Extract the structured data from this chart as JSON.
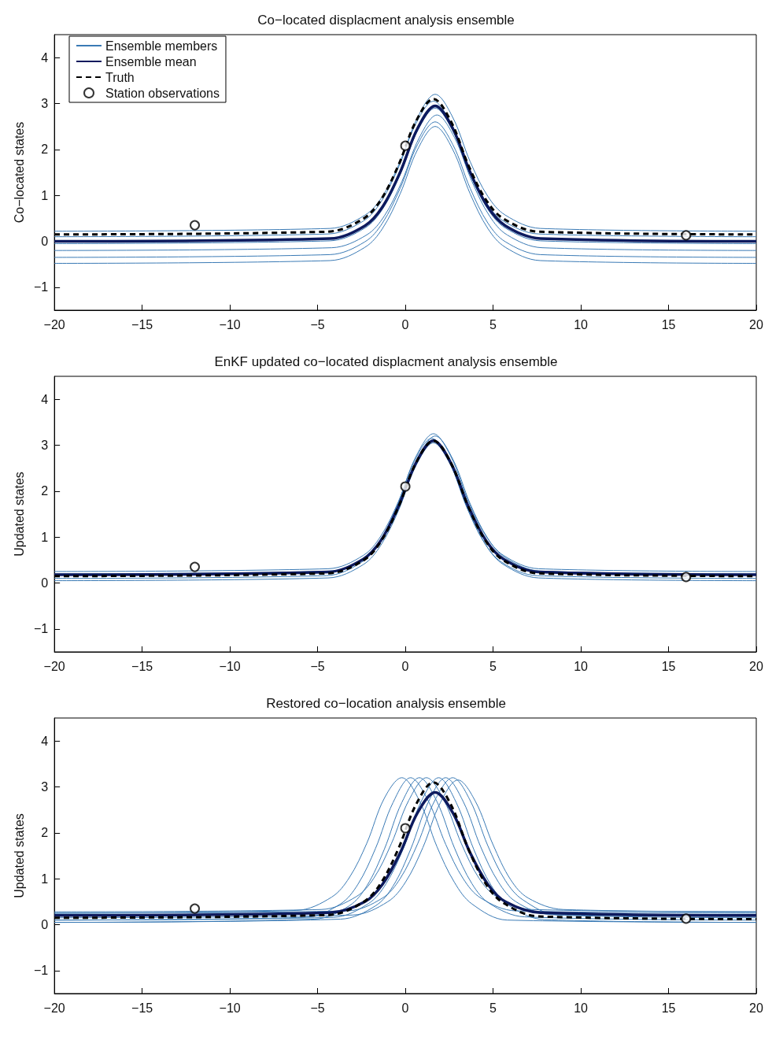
{
  "chart_data": [
    {
      "type": "line",
      "title": "Co−located displacment analysis ensemble",
      "ylabel": "Co−located states",
      "xlim": [
        -20,
        20
      ],
      "xticks": [
        -20,
        -15,
        -10,
        -5,
        0,
        5,
        10,
        15,
        20
      ],
      "ylim": [
        -1.5,
        4.5
      ],
      "yticks": [
        -1,
        0,
        1,
        2,
        3,
        4
      ],
      "grid": false,
      "legend": "top left",
      "marker": "none",
      "series": [
        {
          "name": "Ensemble members",
          "color": "#3a7ab5",
          "x": [
            -20,
            -4.3,
            -2.3,
            -1.3,
            -0.3,
            0.7,
            1.7,
            2.7,
            3.7,
            4.7,
            5.7,
            7.7,
            20
          ],
          "values": [
            0.22,
            0.28,
            0.57,
            0.98,
            1.73,
            2.7,
            3.2,
            2.7,
            1.73,
            0.98,
            0.57,
            0.28,
            0.22
          ]
        },
        {
          "color": "#3a7ab5",
          "x": [
            -20,
            -4.4,
            -2.4,
            -1.4,
            -0.4,
            0.6,
            1.6,
            2.6,
            3.6,
            4.6,
            5.6,
            7.6,
            20
          ],
          "values": [
            0.1,
            0.16,
            0.44,
            0.85,
            1.6,
            2.56,
            3.05,
            2.56,
            1.6,
            0.85,
            0.44,
            0.16,
            0.1
          ]
        },
        {
          "color": "#3a7ab5",
          "x": [
            -20,
            -4.3,
            -2.3,
            -1.3,
            -0.3,
            0.7,
            1.7,
            2.7,
            3.7,
            4.7,
            5.7,
            7.7,
            20
          ],
          "values": [
            -0.05,
            0.01,
            0.29,
            0.7,
            1.45,
            2.41,
            2.9,
            2.41,
            1.45,
            0.7,
            0.29,
            0.01,
            -0.05
          ]
        },
        {
          "color": "#3a7ab5",
          "x": [
            -20,
            -4.2,
            -2.2,
            -1.2,
            -0.2,
            0.8,
            1.8,
            2.8,
            3.8,
            4.8,
            5.8,
            7.8,
            20
          ],
          "values": [
            -0.2,
            -0.14,
            0.14,
            0.55,
            1.3,
            2.26,
            2.75,
            2.26,
            1.3,
            0.55,
            0.14,
            -0.14,
            -0.2
          ]
        },
        {
          "color": "#3a7ab5",
          "x": [
            -20,
            -4.3,
            -2.3,
            -1.3,
            -0.3,
            0.7,
            1.7,
            2.7,
            3.7,
            4.7,
            5.7,
            7.7,
            20
          ],
          "values": [
            -0.35,
            -0.29,
            -0.01,
            0.4,
            1.15,
            2.11,
            2.6,
            2.11,
            1.15,
            0.4,
            -0.01,
            -0.29,
            -0.35
          ]
        },
        {
          "color": "#3a7ab5",
          "x": [
            -20,
            -4.3,
            -2.3,
            -1.3,
            -0.3,
            0.7,
            1.7,
            2.7,
            3.7,
            4.7,
            5.7,
            7.7,
            20
          ],
          "values": [
            -0.48,
            -0.42,
            -0.13,
            0.28,
            1.03,
            2.0,
            2.5,
            2.0,
            1.03,
            0.28,
            -0.13,
            -0.42,
            -0.48
          ]
        },
        {
          "name": "Ensemble mean",
          "color": "#0d1a5e",
          "x": [
            -20,
            -4.3,
            -2.3,
            -1.3,
            -0.3,
            0.7,
            1.7,
            2.7,
            3.7,
            4.7,
            5.7,
            7.7,
            20
          ],
          "values": [
            0,
            0.06,
            0.34,
            0.75,
            1.5,
            2.46,
            2.95,
            2.46,
            1.5,
            0.75,
            0.34,
            0.06,
            0
          ]
        },
        {
          "name": "Truth",
          "color": "#000000",
          "line_style": "dashed",
          "x": [
            -20,
            -4.4,
            -2.4,
            -1.4,
            -0.4,
            0.6,
            1.6,
            2.6,
            3.6,
            4.6,
            5.6,
            7.6,
            20
          ],
          "values": [
            0.15,
            0.21,
            0.49,
            0.9,
            1.65,
            2.61,
            3.1,
            2.61,
            1.65,
            0.9,
            0.49,
            0.21,
            0.15
          ]
        },
        {
          "name": "Station observations",
          "type": "scatter",
          "marker": "circle",
          "color": "#000000",
          "x": [
            -12,
            0,
            16
          ],
          "values": [
            0.35,
            2.08,
            0.13
          ]
        }
      ]
    },
    {
      "type": "line",
      "title": "EnKF updated co−located displacment analysis ensemble",
      "ylabel": "Updated states",
      "xlim": [
        -20,
        20
      ],
      "xticks": [
        -20,
        -15,
        -10,
        -5,
        0,
        5,
        10,
        15,
        20
      ],
      "ylim": [
        -1.5,
        4.5
      ],
      "yticks": [
        -1,
        0,
        1,
        2,
        3,
        4
      ],
      "grid": false,
      "legend": false,
      "marker": "none",
      "series": [
        {
          "color": "#3a7ab5",
          "x": [
            -20,
            -4.4,
            -2.4,
            -1.4,
            -0.4,
            0.6,
            1.6,
            2.6,
            3.6,
            4.6,
            5.6,
            7.6,
            20
          ],
          "values": [
            0.25,
            0.31,
            0.6,
            1.02,
            1.77,
            2.75,
            3.25,
            2.75,
            1.77,
            1.02,
            0.6,
            0.31,
            0.25
          ]
        },
        {
          "color": "#3a7ab5",
          "x": [
            -20,
            -4.5,
            -2.5,
            -1.5,
            -0.5,
            0.5,
            1.5,
            2.5,
            3.5,
            4.5,
            5.5,
            7.5,
            20
          ],
          "values": [
            0.1,
            0.16,
            0.45,
            0.88,
            1.65,
            2.64,
            3.15,
            2.64,
            1.65,
            0.88,
            0.45,
            0.16,
            0.1
          ]
        },
        {
          "color": "#3a7ab5",
          "x": [
            -20,
            -4.4,
            -2.4,
            -1.4,
            -0.4,
            0.6,
            1.6,
            2.6,
            3.6,
            4.6,
            5.6,
            7.6,
            20
          ],
          "values": [
            0.05,
            0.11,
            0.4,
            0.82,
            1.57,
            2.55,
            3.05,
            2.55,
            1.57,
            0.82,
            0.4,
            0.11,
            0.05
          ]
        },
        {
          "color": "#3a7ab5",
          "x": [
            -20,
            -4.3,
            -2.3,
            -1.3,
            -0.3,
            0.7,
            1.7,
            2.7,
            3.7,
            4.7,
            5.7,
            7.7,
            20
          ],
          "values": [
            0.2,
            0.26,
            0.55,
            0.97,
            1.72,
            2.7,
            3.2,
            2.7,
            1.72,
            0.97,
            0.55,
            0.26,
            0.2
          ]
        },
        {
          "color": "#0d1a5e",
          "x": [
            -20,
            -4.4,
            -2.4,
            -1.4,
            -0.4,
            0.6,
            1.6,
            2.6,
            3.6,
            4.6,
            5.6,
            7.6,
            20
          ],
          "values": [
            0.18,
            0.24,
            0.52,
            0.92,
            1.66,
            2.61,
            3.1,
            2.61,
            1.66,
            0.92,
            0.52,
            0.24,
            0.18
          ]
        },
        {
          "color": "#000000",
          "line_style": "dashed",
          "x": [
            -20,
            -4.4,
            -2.4,
            -1.4,
            -0.4,
            0.6,
            1.6,
            2.6,
            3.6,
            4.6,
            5.6,
            7.6,
            20
          ],
          "values": [
            0.15,
            0.21,
            0.49,
            0.9,
            1.65,
            2.61,
            3.1,
            2.61,
            1.65,
            0.9,
            0.49,
            0.21,
            0.15
          ]
        },
        {
          "type": "scatter",
          "marker": "circle",
          "color": "#000000",
          "x": [
            -12,
            0,
            16
          ],
          "values": [
            0.35,
            2.1,
            0.13
          ]
        }
      ]
    },
    {
      "type": "line",
      "title": "Restored co−location analysis ensemble",
      "ylabel": "Updated states",
      "xlim": [
        -20,
        20
      ],
      "xticks": [
        -20,
        -15,
        -10,
        -5,
        0,
        5,
        10,
        15,
        20
      ],
      "ylim": [
        -1.5,
        4.5
      ],
      "yticks": [
        -1,
        0,
        1,
        2,
        3,
        4
      ],
      "grid": false,
      "legend": false,
      "marker": "none",
      "series": [
        {
          "color": "#3a7ab5",
          "x": [
            -20,
            -6.2,
            -4.2,
            -3.2,
            -2.2,
            -1.2,
            -0.2,
            0.8,
            1.8,
            2.8,
            3.8,
            5.8,
            20
          ],
          "values": [
            0.25,
            0.31,
            0.6,
            1.02,
            1.77,
            2.75,
            3.2,
            2.7,
            1.7,
            0.92,
            0.45,
            0.1,
            0.05
          ]
        },
        {
          "color": "#3a7ab5",
          "x": [
            -20,
            -5.7,
            -3.7,
            -2.7,
            -1.7,
            -0.7,
            0.3,
            1.3,
            2.3,
            3.3,
            4.3,
            6.3,
            20
          ],
          "values": [
            0.1,
            0.16,
            0.45,
            0.88,
            1.66,
            2.66,
            3.2,
            2.7,
            1.75,
            1.0,
            0.58,
            0.3,
            0.25
          ]
        },
        {
          "color": "#3a7ab5",
          "x": [
            -20,
            -5.2,
            -3.2,
            -2.2,
            -1.2,
            -0.2,
            0.8,
            1.8,
            2.8,
            3.8,
            4.8,
            6.8,
            20
          ],
          "values": [
            0.05,
            0.12,
            0.41,
            0.84,
            1.64,
            2.66,
            3.2,
            2.68,
            1.67,
            0.89,
            0.46,
            0.17,
            0.1
          ]
        },
        {
          "color": "#3a7ab5",
          "x": [
            -20,
            -4.8,
            -2.8,
            -1.8,
            -0.8,
            0.2,
            1.2,
            2.2,
            3.2,
            4.2,
            5.2,
            7.2,
            20
          ],
          "values": [
            0.28,
            0.33,
            0.61,
            1.01,
            1.76,
            2.71,
            3.2,
            2.71,
            1.76,
            1.01,
            0.61,
            0.33,
            0.28
          ]
        },
        {
          "color": "#3a7ab5",
          "x": [
            -20,
            -4.1,
            -2.1,
            -1.1,
            -0.1,
            0.9,
            1.9,
            2.9,
            3.9,
            4.9,
            5.9,
            7.9,
            20
          ],
          "values": [
            0.1,
            0.16,
            0.46,
            0.89,
            1.67,
            2.68,
            3.2,
            2.66,
            1.64,
            0.85,
            0.42,
            0.11,
            0.05
          ]
        },
        {
          "color": "#3a7ab5",
          "x": [
            -20,
            -3.7,
            -1.7,
            -0.7,
            0.3,
            1.3,
            2.3,
            3.3,
            4.3,
            5.3,
            6.3,
            8.3,
            20
          ],
          "values": [
            0.05,
            0.12,
            0.41,
            0.84,
            1.64,
            2.66,
            3.2,
            2.68,
            1.69,
            0.93,
            0.5,
            0.22,
            0.18
          ]
        },
        {
          "color": "#3a7ab5",
          "x": [
            -20,
            -3.3,
            -1.3,
            -0.3,
            0.7,
            1.7,
            2.7,
            3.7,
            4.7,
            5.7,
            6.7,
            8.7,
            20
          ],
          "values": [
            0.25,
            0.3,
            0.58,
            1.0,
            1.76,
            2.72,
            3.2,
            2.7,
            1.72,
            0.96,
            0.54,
            0.21,
            0.15
          ]
        },
        {
          "color": "#3a7ab5",
          "x": [
            -20,
            -3.0,
            -1.0,
            0.0,
            1.0,
            2.0,
            3.0,
            4.0,
            5.0,
            6.0,
            7.0,
            9.0,
            20
          ],
          "values": [
            0.15,
            0.21,
            0.5,
            0.92,
            1.68,
            2.66,
            3.15,
            2.68,
            1.74,
            0.98,
            0.58,
            0.33,
            0.28
          ]
        },
        {
          "color": "#0d1a5e",
          "x": [
            -20,
            -4.3,
            -2.3,
            -1.3,
            -0.3,
            0.7,
            1.7,
            2.7,
            3.7,
            4.7,
            5.7,
            7.7,
            20
          ],
          "values": [
            0.2,
            0.26,
            0.5,
            0.88,
            1.56,
            2.44,
            2.88,
            2.44,
            1.56,
            0.88,
            0.5,
            0.26,
            0.2
          ]
        },
        {
          "color": "#000000",
          "line_style": "dashed",
          "x": [
            -20,
            -4.4,
            -2.4,
            -1.4,
            -0.4,
            0.6,
            1.6,
            2.6,
            3.6,
            4.6,
            5.6,
            7.6,
            20
          ],
          "values": [
            0.15,
            0.21,
            0.49,
            0.9,
            1.65,
            2.61,
            3.1,
            2.61,
            1.64,
            0.88,
            0.47,
            0.18,
            0.12
          ]
        },
        {
          "type": "scatter",
          "marker": "circle",
          "color": "#000000",
          "x": [
            -12,
            0,
            16
          ],
          "values": [
            0.35,
            2.1,
            0.13
          ]
        }
      ]
    }
  ]
}
